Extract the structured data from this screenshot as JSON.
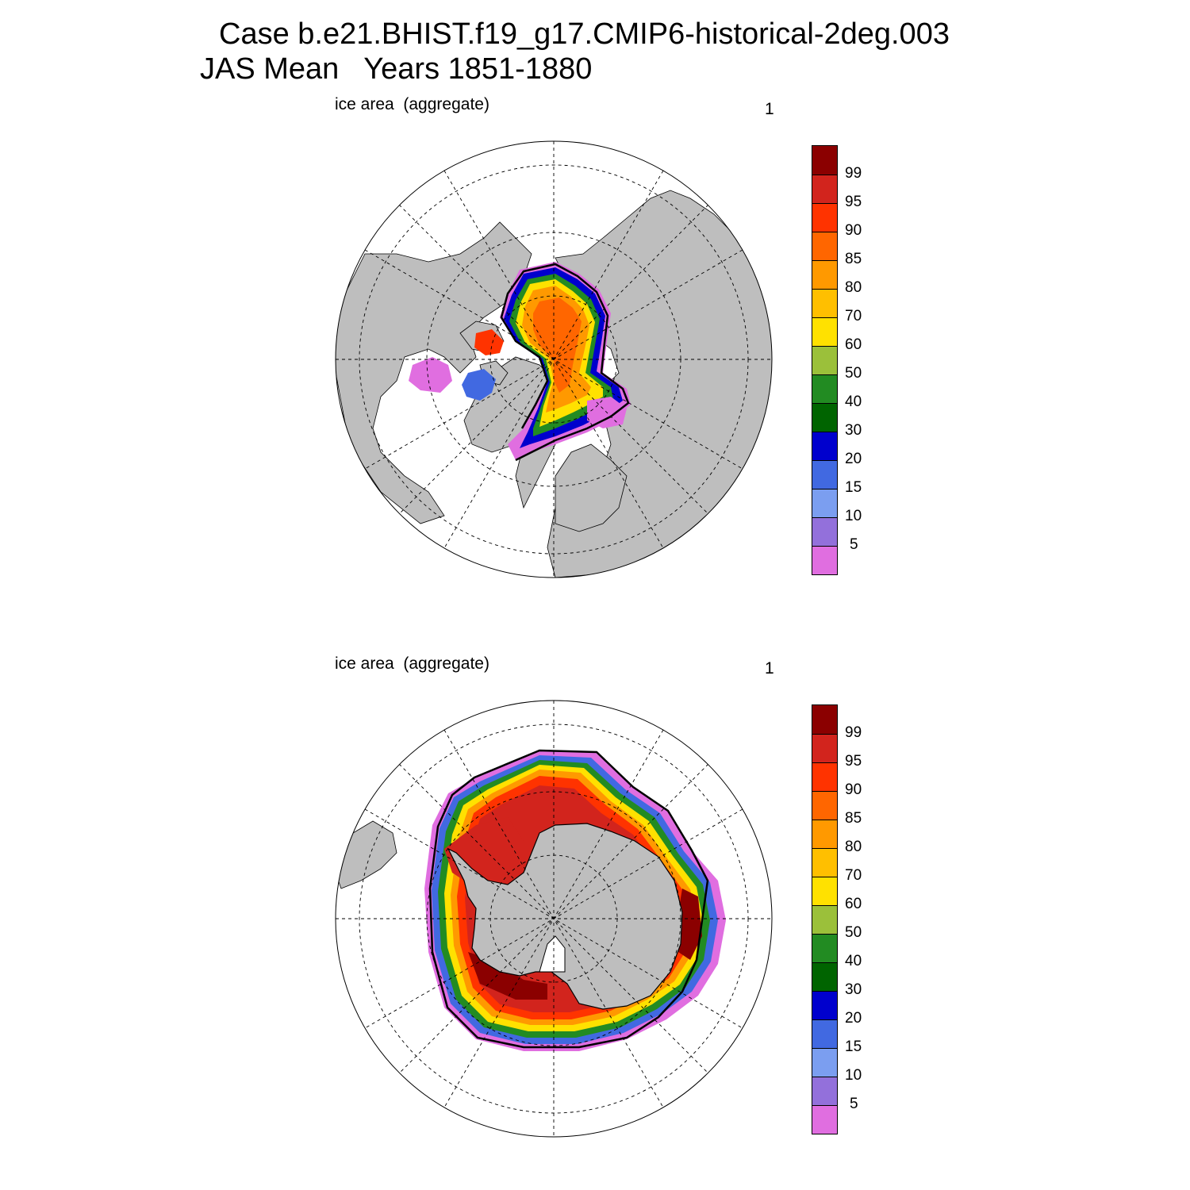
{
  "title": {
    "line1": "Case b.e21.BHIST.f19_g17.CMIP6-historical-2deg.003",
    "line2": "JAS Mean   Years 1851-1880"
  },
  "panels": [
    {
      "id": "north",
      "left_label": "ice area  (aggregate)",
      "right_label": "1",
      "hemisphere": "north"
    },
    {
      "id": "south",
      "left_label": "ice area  (aggregate)",
      "right_label": "1",
      "hemisphere": "south"
    }
  ],
  "colorbar": {
    "colors": [
      "#8b0000",
      "#d2241d",
      "#ff3300",
      "#ff6600",
      "#ff9900",
      "#ffbf00",
      "#ffe100",
      "#9bc03a",
      "#228b22",
      "#006400",
      "#0000cd",
      "#4169e1",
      "#7b9ef0",
      "#9370db",
      "#e06ee0"
    ],
    "labels": [
      "99",
      "95",
      "90",
      "85",
      "80",
      "70",
      "60",
      "50",
      "40",
      "30",
      "20",
      "15",
      "10",
      "5"
    ]
  },
  "colors": {
    "land": "#bebebe",
    "ocean": "#ffffff"
  }
}
